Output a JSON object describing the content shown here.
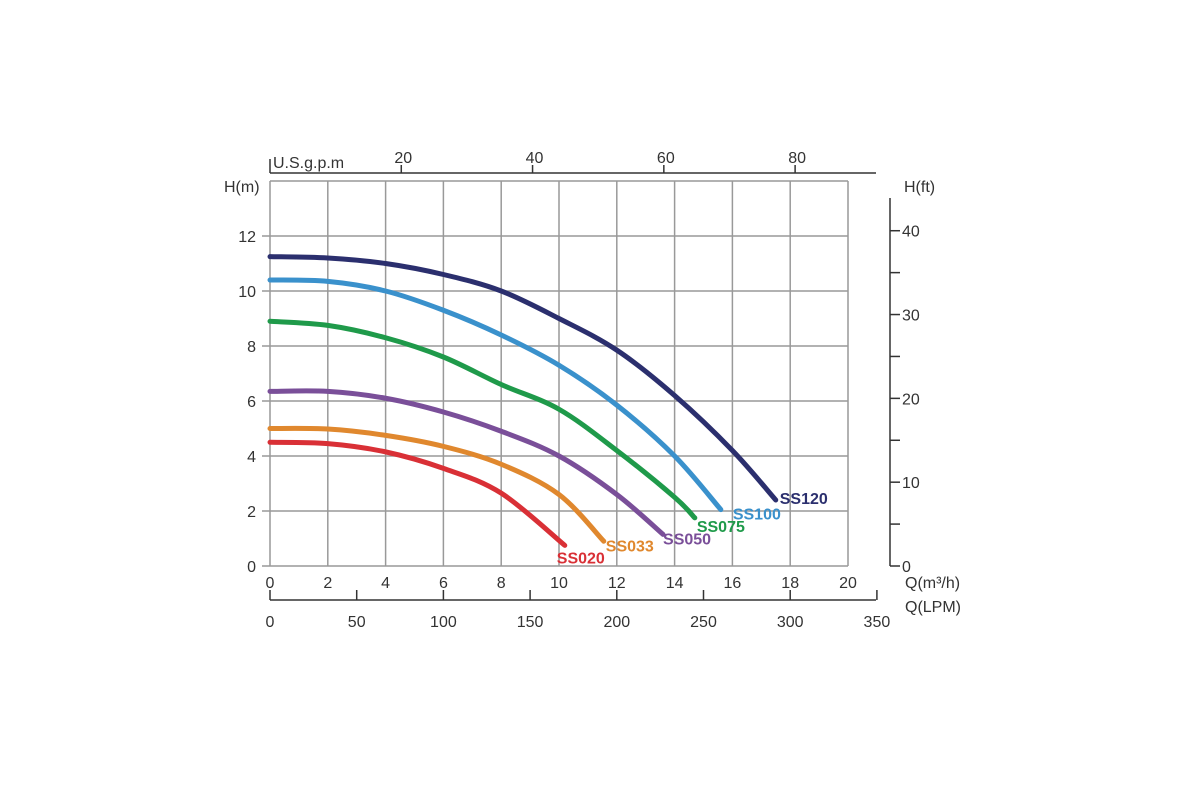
{
  "chart_data": {
    "type": "line",
    "xlabel": "Q(m³/h)",
    "ylabel": "H(m)",
    "y2label": "H(ft)",
    "x_top_label": "U.S.g.p.m",
    "x_bottom2_label": "Q(LPM)",
    "xlim": [
      0,
      20
    ],
    "ylim": [
      0,
      14
    ],
    "grid": true,
    "x_ticks": [
      0,
      2,
      4,
      6,
      8,
      10,
      12,
      14,
      16,
      18,
      20
    ],
    "y_ticks": [
      0,
      2,
      4,
      6,
      8,
      10,
      12
    ],
    "gpm_ticks": [
      20,
      40,
      60,
      80
    ],
    "lpm_ticks": [
      0,
      50,
      100,
      150,
      200,
      250,
      300,
      350
    ],
    "ft_ticks": [
      0,
      10,
      20,
      30,
      40
    ],
    "series": [
      {
        "name": "SS120",
        "color": "#2b2f6e",
        "x": [
          0,
          2,
          4,
          6,
          8,
          10,
          12,
          14,
          16,
          17.5
        ],
        "y": [
          11.25,
          11.2,
          11.0,
          10.6,
          10.0,
          9.0,
          7.85,
          6.2,
          4.2,
          2.4
        ]
      },
      {
        "name": "SS100",
        "color": "#3a91cc",
        "x": [
          0,
          2,
          4,
          6,
          8,
          10,
          12,
          14,
          15.6
        ],
        "y": [
          10.4,
          10.35,
          10.0,
          9.3,
          8.4,
          7.3,
          5.85,
          4.0,
          2.05
        ]
      },
      {
        "name": "SS075",
        "color": "#1f9a4a",
        "x": [
          0,
          2,
          4,
          6,
          8,
          10,
          12,
          14,
          14.7
        ],
        "y": [
          8.9,
          8.75,
          8.3,
          7.6,
          6.6,
          5.7,
          4.2,
          2.5,
          1.75
        ]
      },
      {
        "name": "SS050",
        "color": "#7a4f99",
        "x": [
          0,
          2,
          4,
          6,
          8,
          10,
          12,
          13.6
        ],
        "y": [
          6.35,
          6.35,
          6.1,
          5.6,
          4.9,
          4.0,
          2.6,
          1.15
        ]
      },
      {
        "name": "SS033",
        "color": "#e0882e",
        "x": [
          0,
          2,
          4,
          6,
          8,
          10,
          11.55
        ],
        "y": [
          5.0,
          4.98,
          4.75,
          4.35,
          3.7,
          2.6,
          0.9
        ]
      },
      {
        "name": "SS020",
        "color": "#d93036",
        "x": [
          0,
          2,
          4,
          6,
          8,
          10.2
        ],
        "y": [
          4.5,
          4.45,
          4.15,
          3.55,
          2.65,
          0.75
        ]
      }
    ]
  }
}
